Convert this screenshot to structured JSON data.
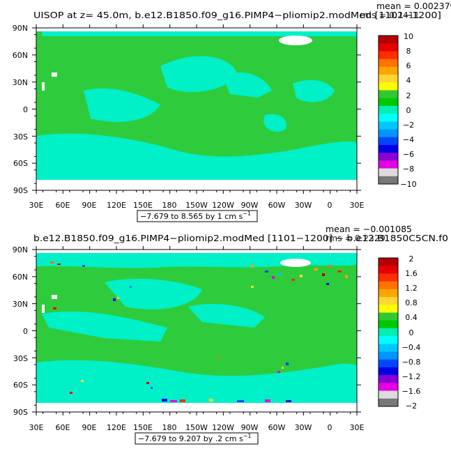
{
  "panels": [
    {
      "title": "UISOP at z=   45.0m, b.e12.B1850.f09_g16.PIMP4−pliomip2.modMed [1101−1200]",
      "stats": {
        "mean": "mean = 0.002379",
        "rms": "rms = 0.2411"
      },
      "range_label": "−7.679 to 8.565 by 1 cm s",
      "range_exp": "−1",
      "colorbar_labels": [
        "10",
        "8",
        "6",
        "4",
        "2",
        "0",
        "−2",
        "−4",
        "−6",
        "−8",
        "−10"
      ]
    },
    {
      "title": "b.e12.B1850.f09_g16.PIMP4−pliomip2.modMed [1101−1200] − b.e12.B1850C5CN.f0",
      "stats": {
        "mean": "mean = −0.001085",
        "rms": "rms = 0.2329"
      },
      "range_label": "−7.679 to 9.207 by .2 cm s",
      "range_exp": "−1",
      "colorbar_labels": [
        "2",
        "1.6",
        "1.2",
        "0.8",
        "0.4",
        "0",
        "−0.4",
        "−0.8",
        "−1.2",
        "−1.6",
        "−2"
      ]
    }
  ],
  "colorbar_colors": [
    "#b40000",
    "#e60000",
    "#ff2d00",
    "#ff7300",
    "#ffa500",
    "#ffd732",
    "#ffff00",
    "#32c832",
    "#00c800",
    "#00f0b4",
    "#00ffff",
    "#00c8ff",
    "#0096ff",
    "#0046ff",
    "#0000e6",
    "#8c00d2",
    "#e600e6",
    "#dcdcdc",
    "#787878"
  ],
  "chart_data": [
    {
      "type": "heatmap",
      "title": "UISOP at z=   45.0m, b.e12.B1850.f09_g16.PIMP4−pliomip2.modMed [1101−1200]",
      "x_ticks": [
        "30E",
        "60E",
        "90E",
        "120E",
        "150E",
        "180",
        "150W",
        "120W",
        "90W",
        "60W",
        "30W",
        "0",
        "30E"
      ],
      "y_ticks": [
        "90N",
        "60N",
        "30N",
        "0",
        "30S",
        "60S",
        "90S"
      ],
      "xlim_deg": [
        30,
        390
      ],
      "ylim_deg": [
        -90,
        90
      ],
      "levels": [
        -10,
        -8,
        -6,
        -4,
        -2,
        0,
        2,
        4,
        6,
        8,
        10
      ],
      "mean": 0.002379,
      "rms": 0.2411,
      "min": -7.679,
      "max": 8.565,
      "interval": 1,
      "units": "cm s-1"
    },
    {
      "type": "heatmap",
      "title": "b.e12.B1850.f09_g16.PIMP4−pliomip2.modMed [1101−1200] − b.e12.B1850C5CN.f0",
      "x_ticks": [
        "30E",
        "60E",
        "90E",
        "120E",
        "150E",
        "180",
        "150W",
        "120W",
        "90W",
        "60W",
        "30W",
        "0",
        "30E"
      ],
      "y_ticks": [
        "90N",
        "60N",
        "30N",
        "0",
        "30S",
        "60S",
        "90S"
      ],
      "xlim_deg": [
        30,
        390
      ],
      "ylim_deg": [
        -90,
        90
      ],
      "levels": [
        -2,
        -1.6,
        -1.2,
        -0.8,
        -0.4,
        0,
        0.4,
        0.8,
        1.2,
        1.6,
        2
      ],
      "mean": -0.001085,
      "rms": 0.2329,
      "min": -7.679,
      "max": 9.207,
      "interval": 0.2,
      "units": "cm s-1"
    }
  ]
}
